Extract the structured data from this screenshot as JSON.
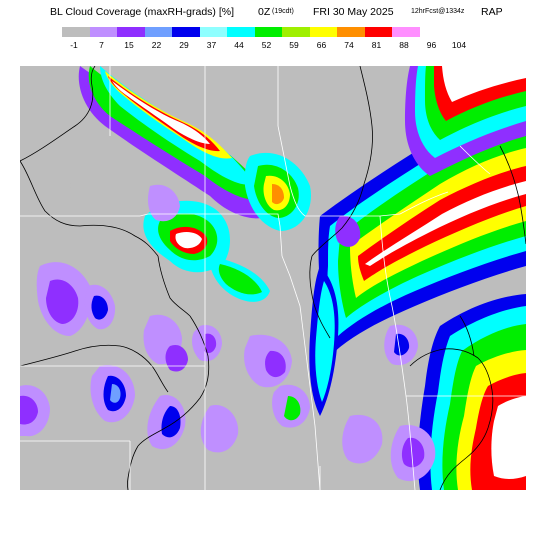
{
  "header": {
    "product": "BL Cloud Coverage (maxRH-grads) [%]",
    "valid_hour": "0Z",
    "valid_local": "(19cdt)",
    "valid_date": "FRI 30 May 2025",
    "forecast_info": "12hrFcst@1334z",
    "model": "RAP"
  },
  "legend": {
    "items": [
      {
        "label": "-1",
        "color": "#bdbdbd"
      },
      {
        "label": "7",
        "color": "#bf8fff"
      },
      {
        "label": "15",
        "color": "#8f2fff"
      },
      {
        "label": "22",
        "color": "#6f9fff"
      },
      {
        "label": "29",
        "color": "#0000ee"
      },
      {
        "label": "37",
        "color": "#8fffff"
      },
      {
        "label": "44",
        "color": "#00ffff"
      },
      {
        "label": "52",
        "color": "#00ee00"
      },
      {
        "label": "59",
        "color": "#9fef00"
      },
      {
        "label": "66",
        "color": "#ffff00"
      },
      {
        "label": "74",
        "color": "#ff8f00"
      },
      {
        "label": "81",
        "color": "#ff0000"
      },
      {
        "label": "88",
        "color": "#ff8fff"
      },
      {
        "label": "96",
        "color": "#ffffff"
      },
      {
        "label": "104",
        "color": ""
      }
    ]
  },
  "map": {
    "background_color": "#bdbdbd",
    "state_border_color": "#ffffff",
    "county_line_color": "#000000"
  }
}
